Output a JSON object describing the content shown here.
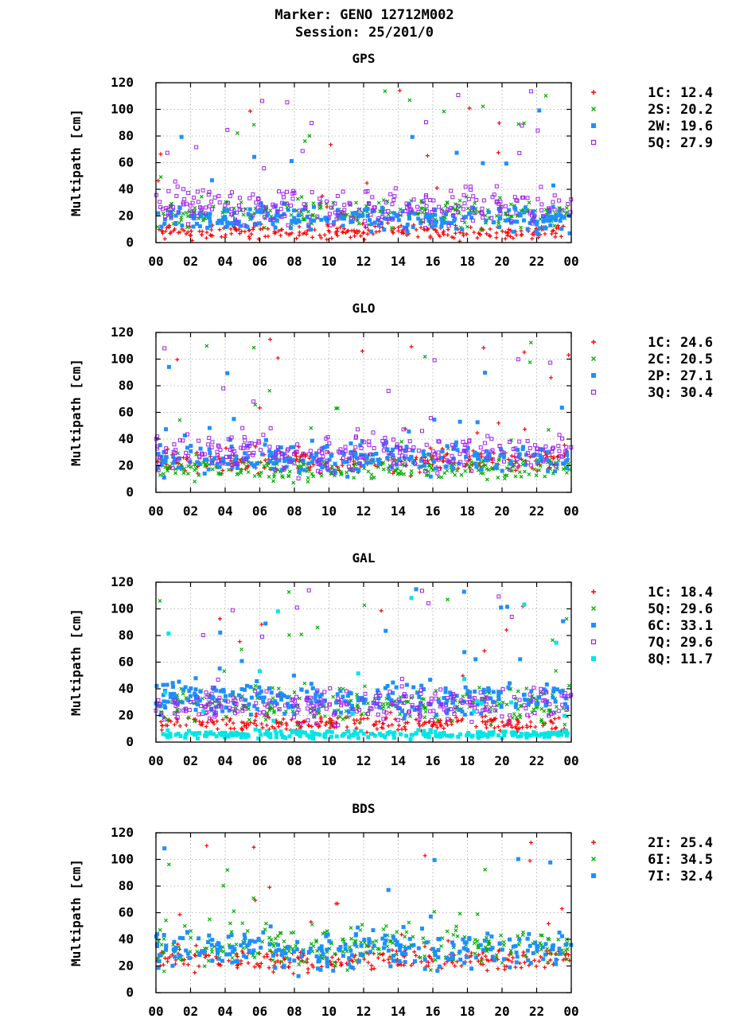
{
  "header": {
    "title_line1": "Marker: GENO 12712M002",
    "title_line2": "Session: 25/201/0"
  },
  "colors": {
    "red": "#ff0000",
    "green": "#00b000",
    "blue": "#1e8fff",
    "purple": "#a020f0",
    "cyan": "#00e5e5"
  },
  "chart_data": [
    {
      "type": "scatter",
      "title": "GPS",
      "ylabel": "Multipath [cm]",
      "xlim": [
        0,
        24
      ],
      "ylim": [
        0,
        120
      ],
      "xticks": [
        "00",
        "02",
        "04",
        "06",
        "08",
        "10",
        "12",
        "14",
        "16",
        "18",
        "20",
        "22",
        "00"
      ],
      "yticks": [
        "0",
        "20",
        "40",
        "60",
        "80",
        "100",
        "120"
      ],
      "grid": true,
      "legend_position": "right",
      "series": [
        {
          "name": "1C",
          "rms": "12.4",
          "marker": "plus",
          "color": "#ff0000"
        },
        {
          "name": "2S",
          "rms": "20.2",
          "marker": "cross",
          "color": "#00b000"
        },
        {
          "name": "2W",
          "rms": "19.6",
          "marker": "square",
          "color": "#1e8fff"
        },
        {
          "name": "5Q",
          "rms": "27.9",
          "marker": "open-square",
          "color": "#a020f0"
        }
      ]
    },
    {
      "type": "scatter",
      "title": "GLO",
      "ylabel": "Multipath [cm]",
      "xlim": [
        0,
        24
      ],
      "ylim": [
        0,
        120
      ],
      "xticks": [
        "00",
        "02",
        "04",
        "06",
        "08",
        "10",
        "12",
        "14",
        "16",
        "18",
        "20",
        "22",
        "00"
      ],
      "yticks": [
        "0",
        "20",
        "40",
        "60",
        "80",
        "100",
        "120"
      ],
      "grid": true,
      "legend_position": "right",
      "series": [
        {
          "name": "1C",
          "rms": "24.6",
          "marker": "plus",
          "color": "#ff0000"
        },
        {
          "name": "2C",
          "rms": "20.5",
          "marker": "cross",
          "color": "#00b000"
        },
        {
          "name": "2P",
          "rms": "27.1",
          "marker": "square",
          "color": "#1e8fff"
        },
        {
          "name": "3Q",
          "rms": "30.4",
          "marker": "open-square",
          "color": "#a020f0"
        }
      ]
    },
    {
      "type": "scatter",
      "title": "GAL",
      "ylabel": "Multipath [cm]",
      "xlim": [
        0,
        24
      ],
      "ylim": [
        0,
        120
      ],
      "xticks": [
        "00",
        "02",
        "04",
        "06",
        "08",
        "10",
        "12",
        "14",
        "16",
        "18",
        "20",
        "22",
        "00"
      ],
      "yticks": [
        "0",
        "20",
        "40",
        "60",
        "80",
        "100",
        "120"
      ],
      "grid": true,
      "legend_position": "right",
      "series": [
        {
          "name": "1C",
          "rms": "18.4",
          "marker": "plus",
          "color": "#ff0000"
        },
        {
          "name": "5Q",
          "rms": "29.6",
          "marker": "cross",
          "color": "#00b000"
        },
        {
          "name": "6C",
          "rms": "33.1",
          "marker": "square",
          "color": "#1e8fff"
        },
        {
          "name": "7Q",
          "rms": "29.6",
          "marker": "open-square",
          "color": "#a020f0"
        },
        {
          "name": "8Q",
          "rms": "11.7",
          "marker": "square",
          "color": "#00e5e5"
        }
      ]
    },
    {
      "type": "scatter",
      "title": "BDS",
      "ylabel": "Multipath [cm]",
      "xlim": [
        0,
        24
      ],
      "ylim": [
        0,
        120
      ],
      "xticks": [
        "00",
        "02",
        "04",
        "06",
        "08",
        "10",
        "12",
        "14",
        "16",
        "18",
        "20",
        "22",
        "00"
      ],
      "yticks": [
        "0",
        "20",
        "40",
        "60",
        "80",
        "100",
        "120"
      ],
      "grid": true,
      "legend_position": "right",
      "series": [
        {
          "name": "2I",
          "rms": "25.4",
          "marker": "plus",
          "color": "#ff0000"
        },
        {
          "name": "6I",
          "rms": "34.5",
          "marker": "cross",
          "color": "#00b000"
        },
        {
          "name": "7I",
          "rms": "32.4",
          "marker": "square",
          "color": "#1e8fff"
        }
      ]
    }
  ]
}
